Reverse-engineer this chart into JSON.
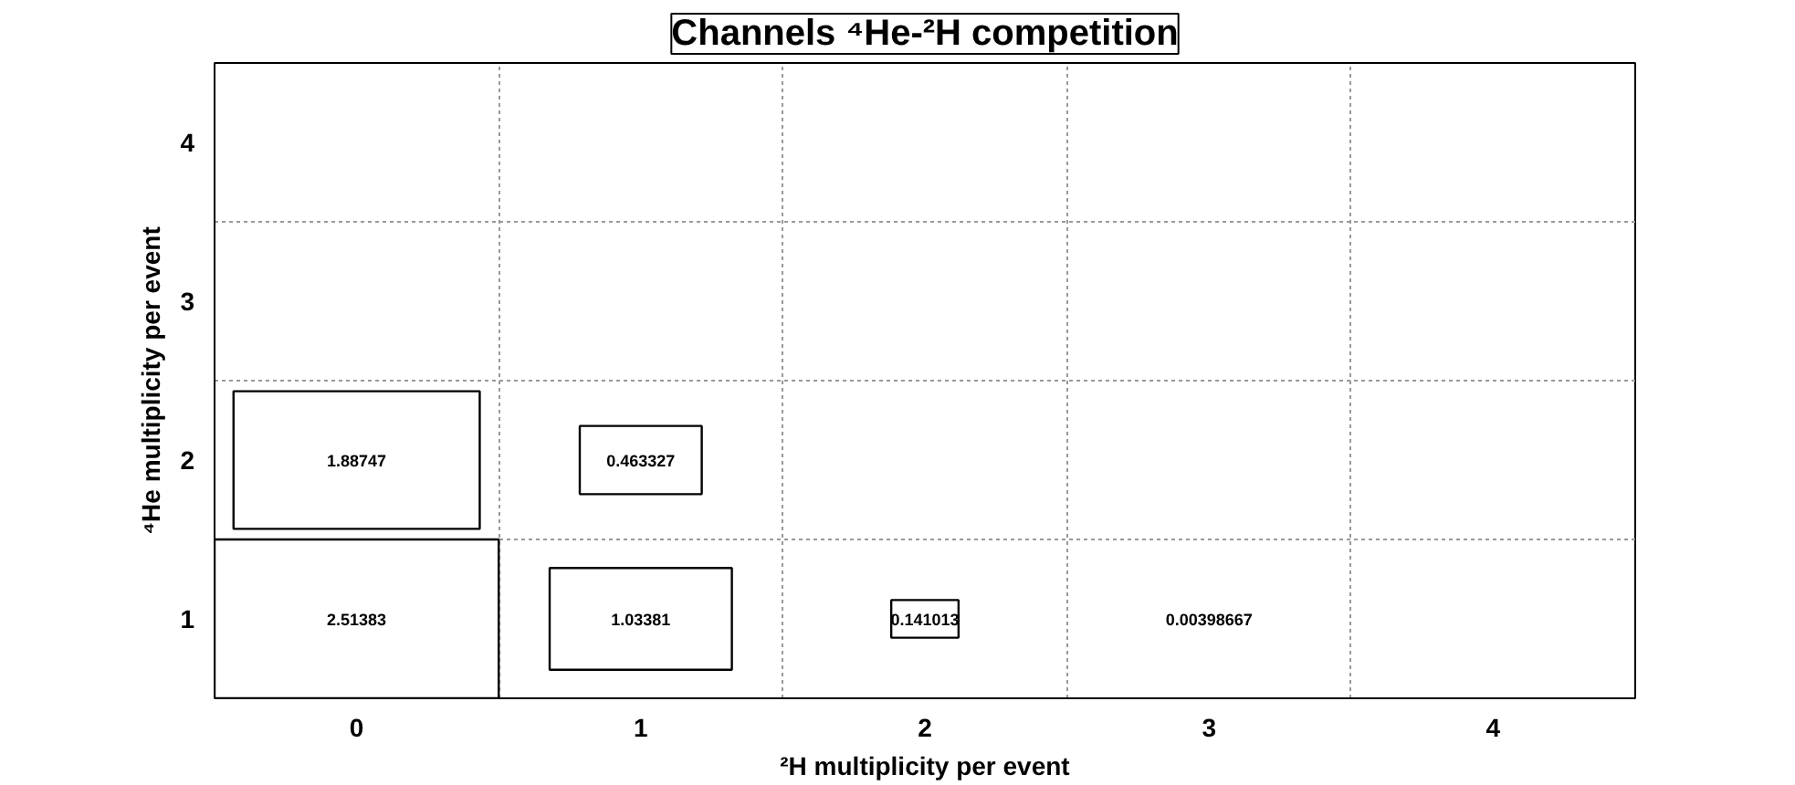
{
  "chart_data": {
    "type": "heatmap",
    "title": "Channels ⁴He-²H competition",
    "xlabel": "²H multiplicity per event",
    "ylabel": "⁴He multiplicity per event",
    "categories": [
      "0",
      "1",
      "2",
      "3",
      "4"
    ],
    "y_categories": [
      "4",
      "3",
      "2",
      "1"
    ],
    "cells": [
      [
        null,
        null,
        null,
        null,
        null
      ],
      [
        null,
        null,
        null,
        null,
        null
      ],
      [
        1.88747,
        0.463327,
        null,
        null,
        null
      ],
      [
        2.51383,
        1.03381,
        0.141013,
        0.00398667,
        null
      ]
    ],
    "data_labels": true,
    "grid": true
  }
}
